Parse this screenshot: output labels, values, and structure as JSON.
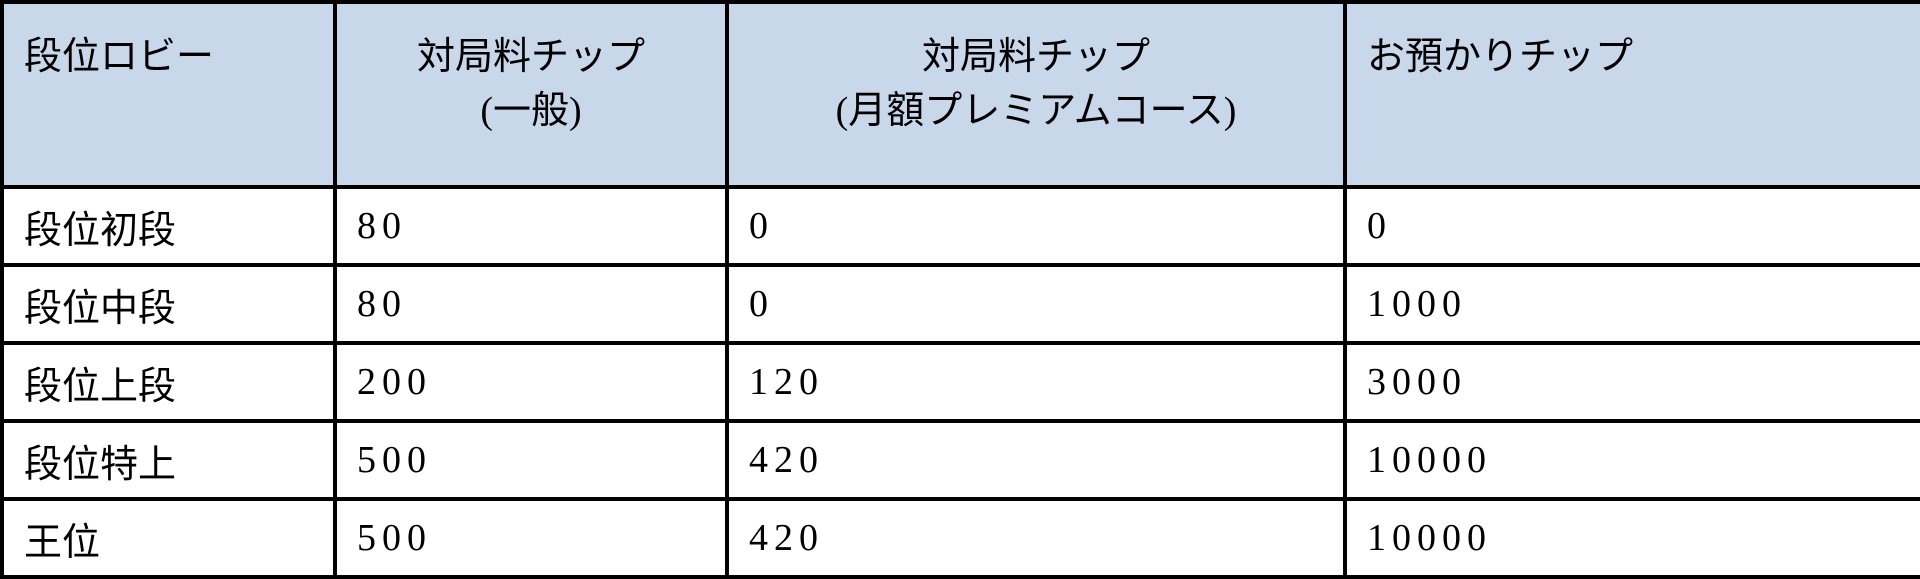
{
  "table": {
    "headers": [
      {
        "line1": "段位ロビー",
        "line2": ""
      },
      {
        "line1": "対局料チップ",
        "line2": "(一般)"
      },
      {
        "line1": "対局料チップ",
        "line2": "(月額プレミアムコース)"
      },
      {
        "line1": "お預かりチップ",
        "line2": ""
      }
    ],
    "rows": [
      [
        "段位初段",
        "80",
        "0",
        "0"
      ],
      [
        "段位中段",
        "80",
        "0",
        "1000"
      ],
      [
        "段位上段",
        "200",
        "120",
        "3000"
      ],
      [
        "段位特上",
        "500",
        "420",
        "10000"
      ],
      [
        "王位",
        "500",
        "420",
        "10000"
      ]
    ],
    "header_color": "#c8d7ea"
  }
}
